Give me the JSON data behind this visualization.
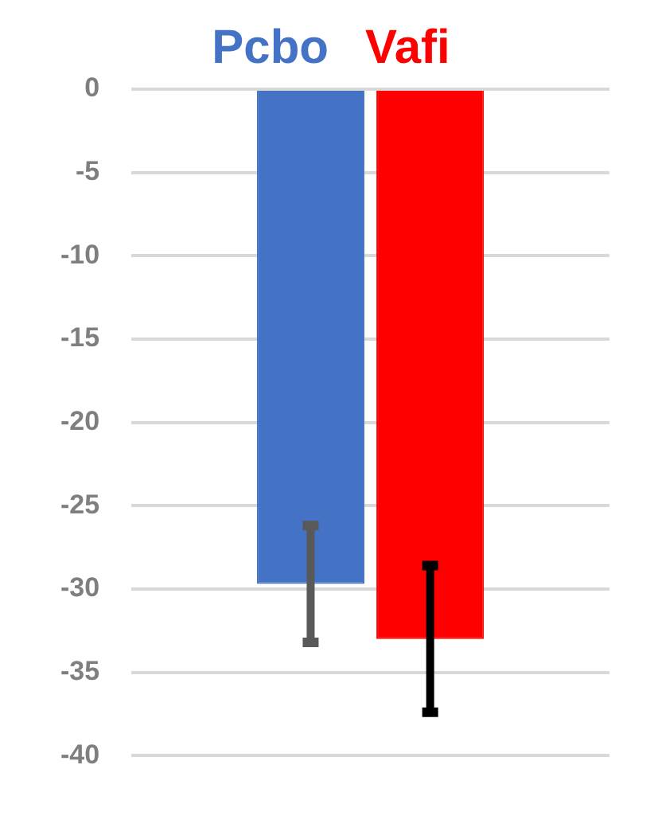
{
  "chart_data": {
    "type": "bar",
    "categories": [
      null
    ],
    "series": [
      {
        "name": "Pcbo",
        "color": "#4472c4",
        "values": [
          -29.7
        ],
        "errors": [
          3.5
        ]
      },
      {
        "name": "Vafi",
        "color": "#ff0000",
        "values": [
          -33.0
        ],
        "errors": [
          4.4
        ]
      }
    ],
    "ylim": [
      -40,
      0
    ],
    "yticks": [
      0,
      -5,
      -10,
      -15,
      -20,
      -25,
      -30,
      -35,
      -40
    ],
    "grid": "y",
    "legend": "top"
  }
}
